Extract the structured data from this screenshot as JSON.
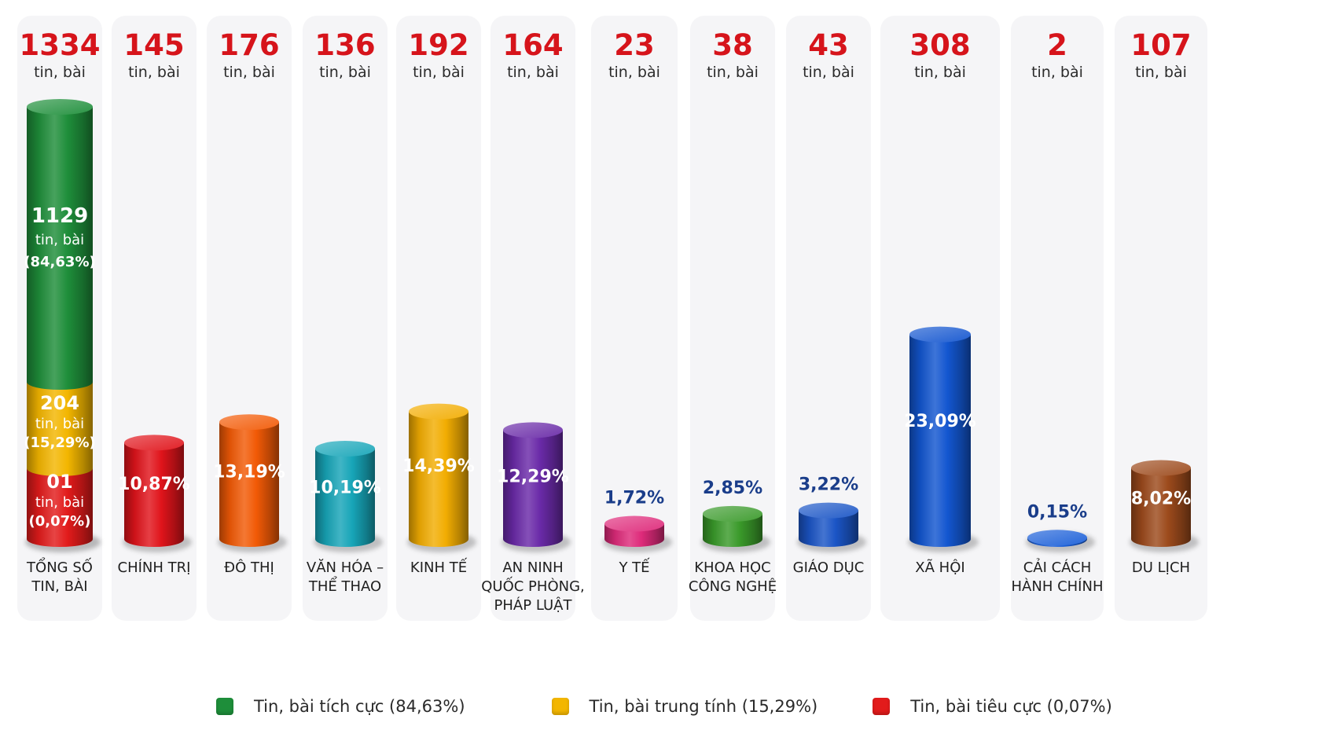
{
  "colors": {
    "count": "#d6141b",
    "unit": "#2b2b2b",
    "label": "#1f1f1f",
    "panel": "#f5f5f7",
    "positive": "#1e8e3a",
    "neutral": "#f3b600",
    "negative": "#e21b1b"
  },
  "chart_data": {
    "type": "bar",
    "style": "3d-cylinder",
    "unit_label": "tin, bài",
    "categories": [
      "TỔNG SỐ TIN, BÀI",
      "CHÍNH TRỊ",
      "ĐÔ THỊ",
      "VĂN HÓA – THỂ THAO",
      "KINH TẾ",
      "AN NINH QUỐC PHÒNG, PHÁP LUẬT",
      "Y TẾ",
      "KHOA HỌC CÔNG NGHỆ",
      "GIÁO DỤC",
      "XÃ HỘI",
      "CẢI CÁCH HÀNH CHÍNH",
      "DU LỊCH"
    ],
    "category_lines": [
      [
        "TỔNG SỐ",
        "TIN, BÀI"
      ],
      [
        "CHÍNH TRỊ"
      ],
      [
        "ĐÔ THỊ"
      ],
      [
        "VĂN HÓA –",
        "THỂ THAO"
      ],
      [
        "KINH TẾ"
      ],
      [
        "AN NINH",
        "QUỐC PHÒNG,",
        "PHÁP LUẬT"
      ],
      [
        "Y TẾ"
      ],
      [
        "KHOA HỌC",
        "CÔNG NGHỆ"
      ],
      [
        "GIÁO DỤC"
      ],
      [
        "XÃ HỘI"
      ],
      [
        "CẢI CÁCH",
        "HÀNH CHÍNH"
      ],
      [
        "DU LỊCH"
      ]
    ],
    "values": [
      1334,
      145,
      176,
      136,
      192,
      164,
      23,
      38,
      43,
      308,
      2,
      107
    ],
    "value_labels": [
      "1334",
      "145",
      "176",
      "136",
      "192",
      "164",
      "23",
      "38",
      "43",
      "308",
      "2",
      "107"
    ],
    "percent_labels": [
      "",
      "10,87%",
      "13,19%",
      "10,19%",
      "14,39%",
      "12,29%",
      "1,72%",
      "2,85%",
      "3,22%",
      "23,09%",
      "0,15%",
      "8,02%"
    ],
    "bar_colors": [
      "",
      "#e0141b",
      "#f25a06",
      "#17a5b8",
      "#f2ad02",
      "#6a2aa8",
      "#de2a7a",
      "#3a9a2a",
      "#1b55c6",
      "#1356d0",
      "#1b5fd8",
      "#9c4a1c"
    ],
    "total_breakdown": [
      {
        "name": "Tin, bài tích cực",
        "value": 1129,
        "value_label": "1129",
        "unit": "tin, bài",
        "percent": "(84,63%)",
        "color": "#1e8e3a"
      },
      {
        "name": "Tin, bài trung tính",
        "value": 204,
        "value_label": "204",
        "unit": "tin, bài",
        "percent": "(15,29%)",
        "color": "#f3b600"
      },
      {
        "name": "Tin, bài tiêu cực",
        "value": 1,
        "value_label": "01",
        "unit": "tin, bài",
        "percent": "(0,07%)",
        "color": "#e21b1b"
      }
    ],
    "legend": [
      {
        "label": "Tin, bài tích cực (84,63%)",
        "color": "#1e8e3a"
      },
      {
        "label": "Tin, bài trung tính (15,29%)",
        "color": "#f3b600"
      },
      {
        "label": "Tin, bài tiêu cực (0,07%)",
        "color": "#e21b1b"
      }
    ],
    "legend_position": "bottom"
  }
}
